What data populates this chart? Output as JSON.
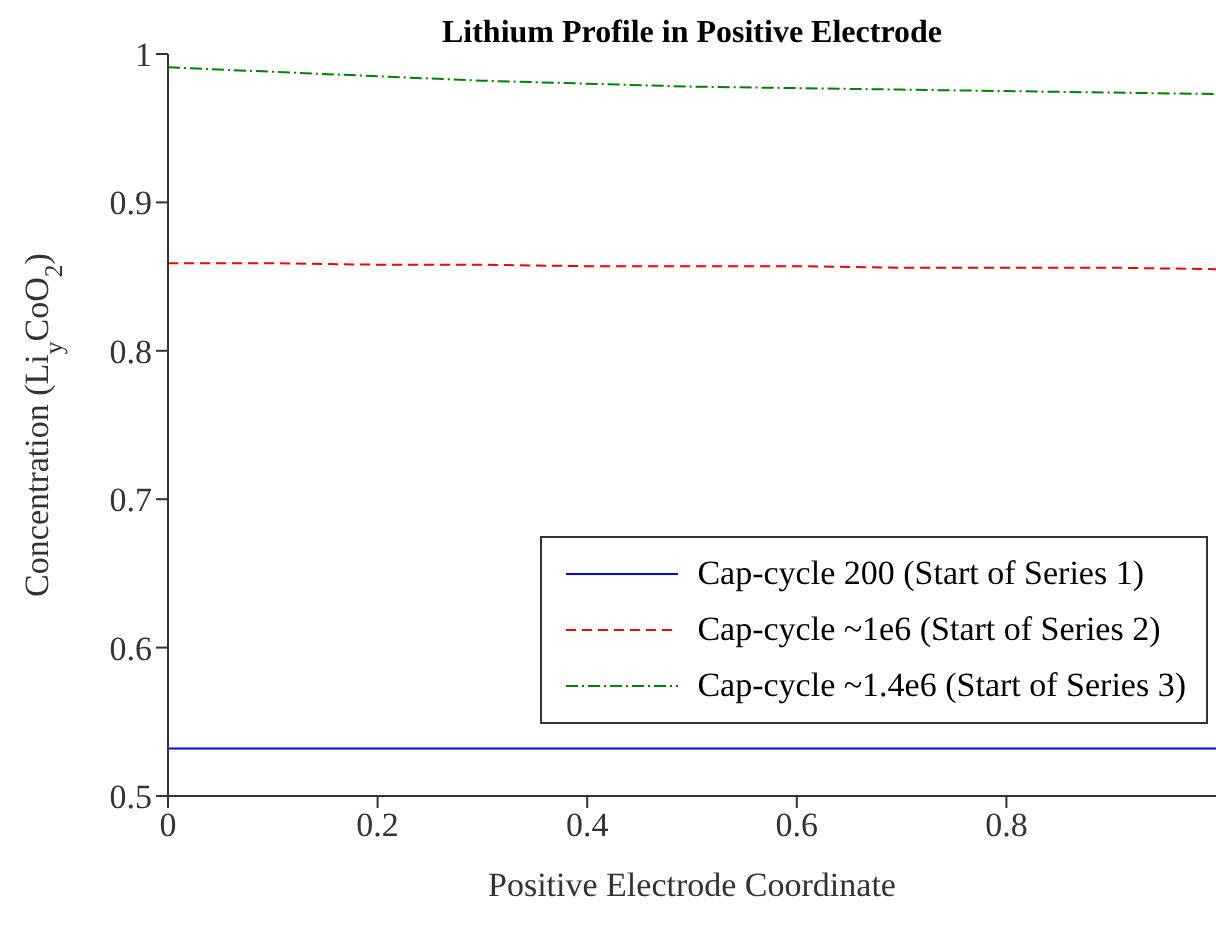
{
  "chart_data": {
    "type": "line",
    "title": "Lithium Profile in Positive Electrode",
    "xlabel": "Positive Electrode Coordinate",
    "ylabel": "Concentration (Li$_{y}$CoO$_{2}$)",
    "x": [
      0,
      0.1,
      0.2,
      0.3,
      0.4,
      0.5,
      0.6,
      0.7,
      0.8,
      0.9,
      1
    ],
    "series": [
      {
        "name": "Cap-cycle 200 (Start of Series 1)",
        "color": "#0000ff",
        "line_style": "solid",
        "values": [
          0.532,
          0.532,
          0.532,
          0.532,
          0.532,
          0.532,
          0.532,
          0.532,
          0.532,
          0.532,
          0.532
        ]
      },
      {
        "name": "Cap-cycle ~1e6 (Start of Series 2)",
        "color": "#ff0000",
        "line_style": "dashed",
        "values": [
          0.859,
          0.859,
          0.858,
          0.858,
          0.857,
          0.857,
          0.857,
          0.856,
          0.856,
          0.856,
          0.855
        ]
      },
      {
        "name": "Cap-cycle ~1.4e6 (Start of Series 3)",
        "color": "#008000",
        "line_style": "dotted",
        "values": [
          0.991,
          0.988,
          0.985,
          0.982,
          0.98,
          0.978,
          0.977,
          0.976,
          0.975,
          0.974,
          0.973
        ]
      }
    ],
    "xlim": [
      0,
      1
    ],
    "xticks": [
      0,
      0.2,
      0.4,
      0.6,
      0.8
    ],
    "ylim": [
      0.5,
      1
    ],
    "yticks": [
      0.5,
      0.6,
      0.7,
      0.8,
      0.9,
      1
    ],
    "grid": false,
    "legend": "bottom right",
    "marker": "none"
  }
}
